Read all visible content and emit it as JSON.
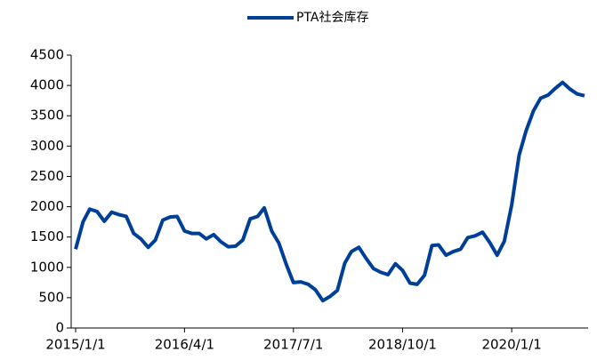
{
  "chart_data": {
    "type": "line",
    "x": [
      "2015/1/1",
      "2015/2/1",
      "2015/3/1",
      "2015/4/1",
      "2015/5/1",
      "2015/6/1",
      "2015/7/1",
      "2015/8/1",
      "2015/9/1",
      "2015/10/1",
      "2015/11/1",
      "2015/12/1",
      "2016/1/1",
      "2016/2/1",
      "2016/3/1",
      "2016/4/1",
      "2016/5/1",
      "2016/6/1",
      "2016/7/1",
      "2016/8/1",
      "2016/9/1",
      "2016/10/1",
      "2016/11/1",
      "2016/12/1",
      "2017/1/1",
      "2017/2/1",
      "2017/3/1",
      "2017/4/1",
      "2017/5/1",
      "2017/6/1",
      "2017/7/1",
      "2017/8/1",
      "2017/9/1",
      "2017/10/1",
      "2017/11/1",
      "2017/12/1",
      "2018/1/1",
      "2018/2/1",
      "2018/3/1",
      "2018/4/1",
      "2018/5/1",
      "2018/6/1",
      "2018/7/1",
      "2018/8/1",
      "2018/9/1",
      "2018/10/1",
      "2018/11/1",
      "2018/12/1",
      "2019/1/1",
      "2019/2/1",
      "2019/3/1",
      "2019/4/1",
      "2019/5/1",
      "2019/6/1",
      "2019/7/1",
      "2019/8/1",
      "2019/9/1",
      "2019/10/1",
      "2019/11/1",
      "2019/12/1",
      "2020/1/1",
      "2020/2/1",
      "2020/3/1",
      "2020/4/1",
      "2020/5/1",
      "2020/6/1",
      "2020/7/1",
      "2020/8/1",
      "2020/9/1",
      "2020/10/1",
      "2020/11/1"
    ],
    "series": [
      {
        "name": "PTA社会库存",
        "color": "#003f98",
        "values": [
          1300,
          1750,
          1960,
          1920,
          1760,
          1910,
          1870,
          1840,
          1560,
          1470,
          1330,
          1450,
          1780,
          1830,
          1840,
          1600,
          1560,
          1560,
          1470,
          1540,
          1420,
          1340,
          1350,
          1450,
          1800,
          1840,
          1980,
          1600,
          1400,
          1050,
          750,
          760,
          720,
          630,
          450,
          520,
          620,
          1070,
          1260,
          1330,
          1150,
          980,
          920,
          880,
          1060,
          950,
          740,
          720,
          870,
          1360,
          1370,
          1200,
          1260,
          1300,
          1490,
          1520,
          1580,
          1410,
          1200,
          1430,
          2030,
          2850,
          3250,
          3580,
          3790,
          3840,
          3950,
          4050,
          3940,
          3860,
          3830
        ]
      }
    ],
    "xlim": [
      "2015/1/1",
      "2020/11/1"
    ],
    "xticks": [
      "2015/1/1",
      "2016/4/1",
      "2017/7/1",
      "2018/10/1",
      "2020/1/1"
    ],
    "ylim": [
      0,
      4500
    ],
    "yticks": [
      0,
      500,
      1000,
      1500,
      2000,
      2500,
      3000,
      3500,
      4000,
      4500
    ],
    "legend": "top"
  }
}
